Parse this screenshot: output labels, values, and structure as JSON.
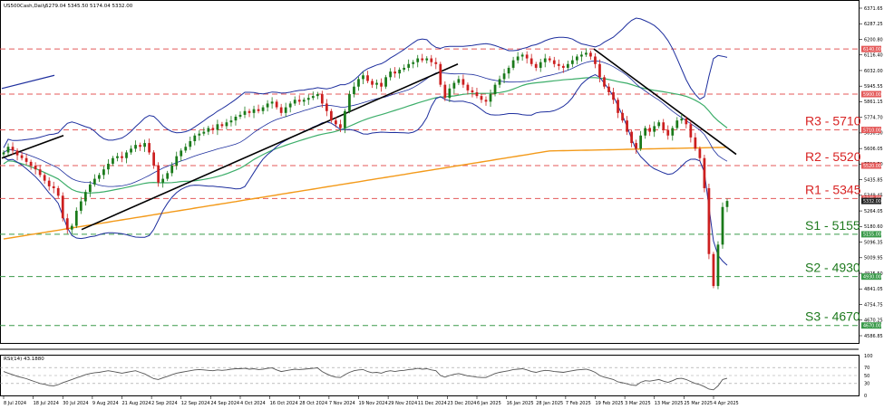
{
  "header": {
    "symbol_label": "US500Cash,Daily",
    "ohlc_label": "5279.04 5345.50 5174.04 5332.00"
  },
  "rsi_header": {
    "label": "RSI(14) 43.1880"
  },
  "colors": {
    "bull": "#1a7a1a",
    "bear": "#cc1f1f",
    "bollinger": "#1e2f9e",
    "ma_green": "#3dae6a",
    "ma_orange": "#f39a1a",
    "trendline": "#000000",
    "res_line": "#e45a5a",
    "sup_line": "#3a9a4a",
    "res_text": "#d82424",
    "sup_text": "#1e7a1e",
    "rsi": "#555555"
  },
  "chart_data": {
    "type": "line",
    "title": "US500Cash,Daily",
    "price_axis_ticks": [
      "6371.65",
      "6287.25",
      "6200.80",
      "6116.40",
      "6032.00",
      "5945.55",
      "5861.15",
      "5774.70",
      "5690.30",
      "5606.05",
      "5519.50",
      "5435.85",
      "5349.45",
      "5264.05",
      "5180.60",
      "5096.35",
      "5009.95",
      "4925.50",
      "4841.05",
      "4754.75",
      "4670.25",
      "4586.85"
    ],
    "price_range": [
      4586.85,
      6371.65
    ],
    "date_axis_ticks": [
      "8 Jul 2024",
      "18 Jul 2024",
      "30 Jul 2024",
      "9 Aug 2024",
      "21 Aug 2024",
      "2 Sep 2024",
      "12 Sep 2024",
      "24 Sep 2024",
      "4 Oct 2024",
      "16 Oct 2024",
      "28 Oct 2024",
      "7 Nov 2024",
      "19 Nov 2024",
      "29 Nov 2024",
      "11 Dec 2024",
      "23 Dec 2024",
      "6 Jan 2025",
      "16 Jan 2025",
      "28 Jan 2025",
      "7 Feb 2025",
      "19 Feb 2025",
      "3 Mar 2025",
      "13 Mar 2025",
      "25 Mar 2025",
      "4 Apr 2025"
    ],
    "levels": [
      {
        "label": "R3 - 5710",
        "value": 5710,
        "kind": "resistance",
        "tag": "5710.00"
      },
      {
        "label": "R2 - 5520",
        "value": 5520,
        "kind": "resistance",
        "tag": "5520.00"
      },
      {
        "label": "R1 - 5345",
        "value": 5345,
        "kind": "resistance",
        "tag": "5345.00"
      },
      {
        "label": "S1 - 5155",
        "value": 5155,
        "kind": "support",
        "tag": "5155.00"
      },
      {
        "label": "S2 - 4930",
        "value": 4930,
        "kind": "support",
        "tag": "4930.00"
      },
      {
        "label": "S3 - 4670",
        "value": 4670,
        "kind": "support",
        "tag": "4670.00"
      }
    ],
    "extra_levels": [
      {
        "value": 6140,
        "tag": "6140.00"
      },
      {
        "value": 5900,
        "tag": "5900.00"
      }
    ],
    "current_price_tag": "5332.00",
    "close_series": [
      5590,
      5620,
      5600,
      5575,
      5560,
      5540,
      5520,
      5500,
      5470,
      5440,
      5410,
      5400,
      5360,
      5240,
      5180,
      5200,
      5280,
      5330,
      5380,
      5420,
      5450,
      5470,
      5500,
      5530,
      5560,
      5570,
      5560,
      5590,
      5610,
      5630,
      5620,
      5640,
      5590,
      5520,
      5430,
      5450,
      5480,
      5520,
      5570,
      5600,
      5620,
      5650,
      5680,
      5690,
      5700,
      5720,
      5710,
      5740,
      5730,
      5750,
      5760,
      5780,
      5790,
      5810,
      5800,
      5820,
      5810,
      5830,
      5850,
      5860,
      5830,
      5800,
      5830,
      5850,
      5870,
      5860,
      5870,
      5880,
      5890,
      5900,
      5850,
      5810,
      5760,
      5740,
      5720,
      5810,
      5900,
      5940,
      5980,
      6000,
      5970,
      5950,
      5960,
      5940,
      5990,
      6020,
      6010,
      6030,
      6040,
      6060,
      6070,
      6090,
      6080,
      6090,
      6070,
      6060,
      5950,
      5880,
      5930,
      5960,
      5980,
      5950,
      5920,
      5910,
      5890,
      5870,
      5860,
      5900,
      5950,
      5980,
      6010,
      6040,
      6080,
      6100,
      6110,
      6090,
      6060,
      6040,
      6070,
      6090,
      6080,
      6060,
      6050,
      6040,
      6060,
      6080,
      6100,
      6110,
      6120,
      6100,
      6060,
      5990,
      5940,
      5910,
      5870,
      5800,
      5760,
      5700,
      5640,
      5610,
      5680,
      5720,
      5700,
      5730,
      5750,
      5710,
      5680,
      5720,
      5760,
      5770,
      5740,
      5670,
      5610,
      5560,
      5400,
      5050,
      4880,
      5100,
      5300,
      5332
    ],
    "rsi": {
      "label": "RSI(14) 43.1880",
      "value": 43.188,
      "ticks": [
        "100",
        "70",
        "50",
        "30",
        "0"
      ],
      "levels": [
        70,
        50,
        30
      ],
      "series": [
        60,
        56,
        52,
        48,
        45,
        42,
        38,
        34,
        30,
        28,
        25,
        24,
        27,
        32,
        36,
        40,
        44,
        48,
        52,
        55,
        57,
        58,
        60,
        62,
        60,
        58,
        56,
        58,
        60,
        62,
        58,
        54,
        48,
        42,
        40,
        44,
        48,
        52,
        56,
        58,
        60,
        62,
        64,
        65,
        64,
        63,
        62,
        64,
        63,
        64,
        66,
        67,
        67,
        68,
        66,
        67,
        65,
        66,
        68,
        69,
        64,
        60,
        62,
        64,
        66,
        65,
        66,
        67,
        68,
        69,
        60,
        54,
        49,
        46,
        45,
        52,
        58,
        62,
        64,
        65,
        60,
        57,
        58,
        56,
        60,
        62,
        60,
        62,
        63,
        65,
        66,
        68,
        66,
        67,
        64,
        62,
        50,
        46,
        50,
        53,
        55,
        52,
        49,
        48,
        46,
        45,
        45,
        50,
        55,
        58,
        60,
        62,
        65,
        66,
        67,
        64,
        60,
        58,
        61,
        63,
        62,
        60,
        59,
        58,
        60,
        62,
        64,
        65,
        66,
        63,
        58,
        50,
        46,
        43,
        40,
        34,
        32,
        29,
        26,
        25,
        33,
        37,
        36,
        38,
        40,
        36,
        33,
        37,
        42,
        43,
        40,
        35,
        30,
        27,
        22,
        16,
        14,
        24,
        40,
        43
      ]
    }
  }
}
